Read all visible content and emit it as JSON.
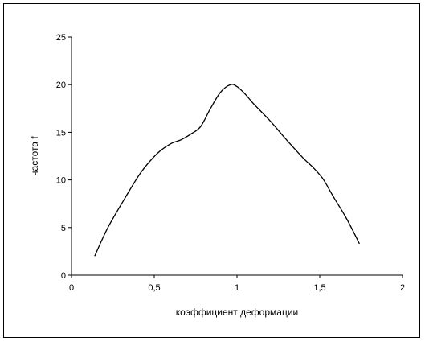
{
  "chart_data": {
    "type": "line",
    "title": "",
    "xlabel": "коэффициент деформации",
    "ylabel": "частота f",
    "xlim": [
      0,
      2
    ],
    "ylim": [
      0,
      25
    ],
    "x_ticks": [
      0,
      0.5,
      1,
      1.5,
      2
    ],
    "x_tick_labels": [
      "0",
      "0,5",
      "1",
      "1,5",
      "2"
    ],
    "y_ticks": [
      0,
      5,
      10,
      15,
      20,
      25
    ],
    "y_tick_labels": [
      "0",
      "5",
      "10",
      "15",
      "20",
      "25"
    ],
    "grid": false,
    "legend": "none",
    "line_color": "#000000",
    "series": [
      {
        "x": [
          0.14,
          0.22,
          0.32,
          0.42,
          0.52,
          0.6,
          0.66,
          0.72,
          0.78,
          0.84,
          0.9,
          0.96,
          1.0,
          1.05,
          1.1,
          1.2,
          1.3,
          1.4,
          1.46,
          1.52,
          1.58,
          1.66,
          1.74
        ],
        "y": [
          2,
          5,
          8,
          10.8,
          12.8,
          13.8,
          14.2,
          14.8,
          15.6,
          17.5,
          19.2,
          20,
          19.8,
          19,
          18,
          16.2,
          14.2,
          12.3,
          11.3,
          10.1,
          8.3,
          6,
          3.3
        ]
      }
    ]
  }
}
